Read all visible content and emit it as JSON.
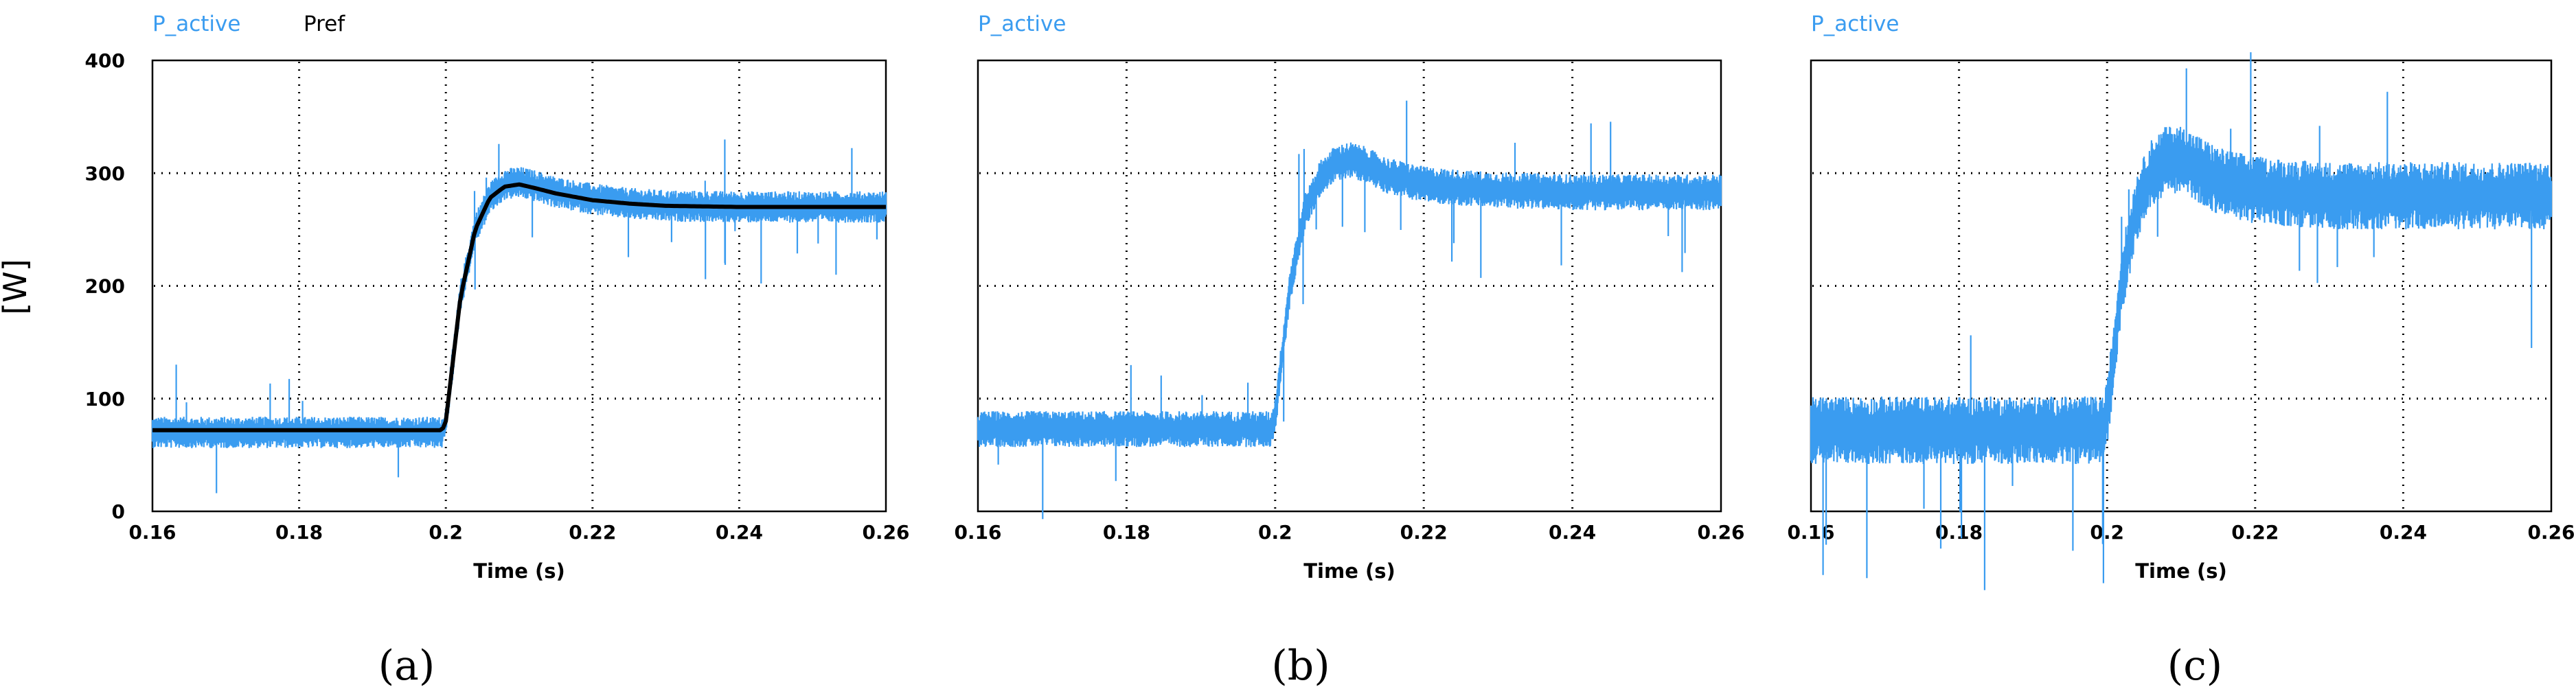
{
  "figure": {
    "ylabel": "[W]",
    "colors": {
      "p_active": "#3a9cf0",
      "pref": "#000000"
    }
  },
  "chart_data": [
    {
      "type": "line",
      "panel_label": "(a)",
      "xlabel": "Time (s)",
      "ylabel": "[W]",
      "xlim": [
        0.16,
        0.26
      ],
      "ylim": [
        0,
        400
      ],
      "xticks": [
        "0.16",
        "0.18",
        "0.2",
        "0.22",
        "0.24",
        "0.26"
      ],
      "yticks": [
        "0",
        "100",
        "200",
        "300",
        "400"
      ],
      "grid": true,
      "legend": "top-left",
      "series": [
        {
          "name": "P_active",
          "color": "#3a9cf0",
          "noise_band": 14,
          "x": [
            0.16,
            0.17,
            0.18,
            0.19,
            0.1995,
            0.2,
            0.202,
            0.204,
            0.206,
            0.208,
            0.21,
            0.212,
            0.215,
            0.22,
            0.225,
            0.23,
            0.24,
            0.25,
            0.26
          ],
          "y": [
            70,
            70,
            70,
            70,
            70,
            80,
            190,
            250,
            278,
            290,
            292,
            289,
            283,
            277,
            273,
            271,
            270,
            270,
            270
          ]
        },
        {
          "name": "Pref",
          "color": "#000000",
          "x": [
            0.16,
            0.17,
            0.18,
            0.19,
            0.1995,
            0.2,
            0.202,
            0.204,
            0.206,
            0.208,
            0.21,
            0.212,
            0.215,
            0.22,
            0.225,
            0.23,
            0.24,
            0.25,
            0.26
          ],
          "y": [
            72,
            72,
            72,
            72,
            72,
            80,
            190,
            250,
            278,
            288,
            290,
            287,
            282,
            276,
            273,
            271,
            270,
            270,
            270
          ]
        }
      ]
    },
    {
      "type": "line",
      "panel_label": "(b)",
      "xlabel": "Time (s)",
      "xlim": [
        0.16,
        0.26
      ],
      "ylim": [
        0,
        400
      ],
      "xticks": [
        "0.16",
        "0.18",
        "0.2",
        "0.22",
        "0.24",
        "0.26"
      ],
      "grid": true,
      "legend": "top-left",
      "series": [
        {
          "name": "P_active",
          "color": "#3a9cf0",
          "noise_band": 16,
          "x": [
            0.16,
            0.17,
            0.18,
            0.19,
            0.1995,
            0.2,
            0.202,
            0.204,
            0.206,
            0.208,
            0.21,
            0.212,
            0.215,
            0.22,
            0.225,
            0.23,
            0.24,
            0.25,
            0.26
          ],
          "y": [
            73,
            73,
            73,
            73,
            73,
            85,
            200,
            265,
            295,
            308,
            312,
            308,
            298,
            290,
            287,
            285,
            283,
            283,
            283
          ]
        }
      ]
    },
    {
      "type": "line",
      "panel_label": "(c)",
      "xlabel": "Time (s)",
      "xlim": [
        0.16,
        0.26
      ],
      "ylim": [
        0,
        400
      ],
      "xticks": [
        "0.16",
        "0.18",
        "0.2",
        "0.22",
        "0.24",
        "0.26"
      ],
      "grid": true,
      "legend": "top-left",
      "series": [
        {
          "name": "P_active",
          "color": "#3a9cf0",
          "noise_band": 30,
          "x": [
            0.16,
            0.17,
            0.18,
            0.19,
            0.1995,
            0.2,
            0.202,
            0.204,
            0.206,
            0.208,
            0.21,
            0.212,
            0.215,
            0.22,
            0.225,
            0.23,
            0.24,
            0.25,
            0.26
          ],
          "y": [
            72,
            72,
            72,
            72,
            72,
            85,
            205,
            270,
            300,
            312,
            312,
            305,
            293,
            285,
            282,
            280,
            280,
            280,
            280
          ]
        }
      ]
    }
  ]
}
